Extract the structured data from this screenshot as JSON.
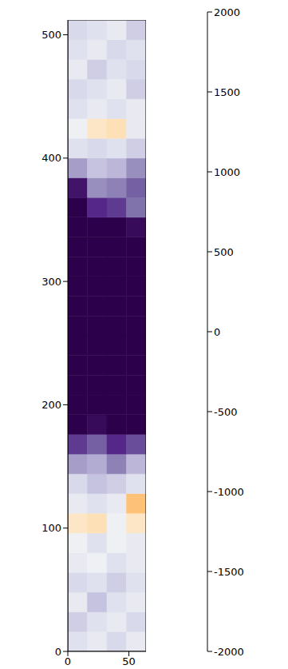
{
  "chart_data": {
    "type": "heatmap",
    "xlim": [
      0,
      64
    ],
    "ylim": [
      0,
      512
    ],
    "xticks": [
      0,
      50
    ],
    "yticks": [
      0,
      100,
      200,
      300,
      400,
      500
    ],
    "x_edges": [
      0,
      16,
      32,
      48,
      64
    ],
    "y_edges": [
      0,
      16,
      32,
      48,
      64,
      80,
      96,
      112,
      128,
      144,
      160,
      176,
      192,
      208,
      224,
      240,
      256,
      272,
      288,
      304,
      320,
      336,
      352,
      368,
      384,
      400,
      416,
      432,
      448,
      464,
      480,
      496,
      512
    ],
    "cells": [
      [
        300,
        200,
        400,
        200
      ],
      [
        500,
        300,
        200,
        400
      ],
      [
        200,
        600,
        300,
        200
      ],
      [
        400,
        300,
        500,
        300
      ],
      [
        200,
        100,
        300,
        200
      ],
      [
        100,
        300,
        100,
        200
      ],
      [
        -300,
        -400,
        100,
        -300
      ],
      [
        200,
        300,
        200,
        -700
      ],
      [
        400,
        600,
        500,
        300
      ],
      [
        900,
        800,
        1100,
        700
      ],
      [
        1500,
        1300,
        1600,
        1400
      ],
      [
        2000,
        1900,
        2000,
        2000
      ],
      [
        2000,
        2000,
        2000,
        2000
      ],
      [
        2000,
        2000,
        2000,
        2000
      ],
      [
        2000,
        2000,
        2000,
        2000
      ],
      [
        2000,
        2000,
        2000,
        2000
      ],
      [
        2000,
        2000,
        2000,
        2000
      ],
      [
        2000,
        2000,
        2000,
        2000
      ],
      [
        2000,
        2000,
        2000,
        2000
      ],
      [
        2000,
        2000,
        2000,
        2000
      ],
      [
        2000,
        2000,
        2000,
        2000
      ],
      [
        2000,
        2000,
        2000,
        1900
      ],
      [
        2000,
        1600,
        1500,
        1200
      ],
      [
        1800,
        1000,
        1100,
        1300
      ],
      [
        900,
        600,
        700,
        1000
      ],
      [
        300,
        400,
        300,
        500
      ],
      [
        100,
        -300,
        -400,
        200
      ],
      [
        300,
        200,
        300,
        200
      ],
      [
        400,
        300,
        200,
        500
      ],
      [
        200,
        500,
        300,
        400
      ],
      [
        300,
        200,
        400,
        300
      ],
      [
        400,
        300,
        200,
        500
      ]
    ],
    "colorbar_range": [
      -2000,
      2000
    ],
    "colorbar_ticks": [
      -2000,
      -1500,
      -1000,
      -500,
      0,
      500,
      1000,
      1500,
      2000
    ]
  }
}
